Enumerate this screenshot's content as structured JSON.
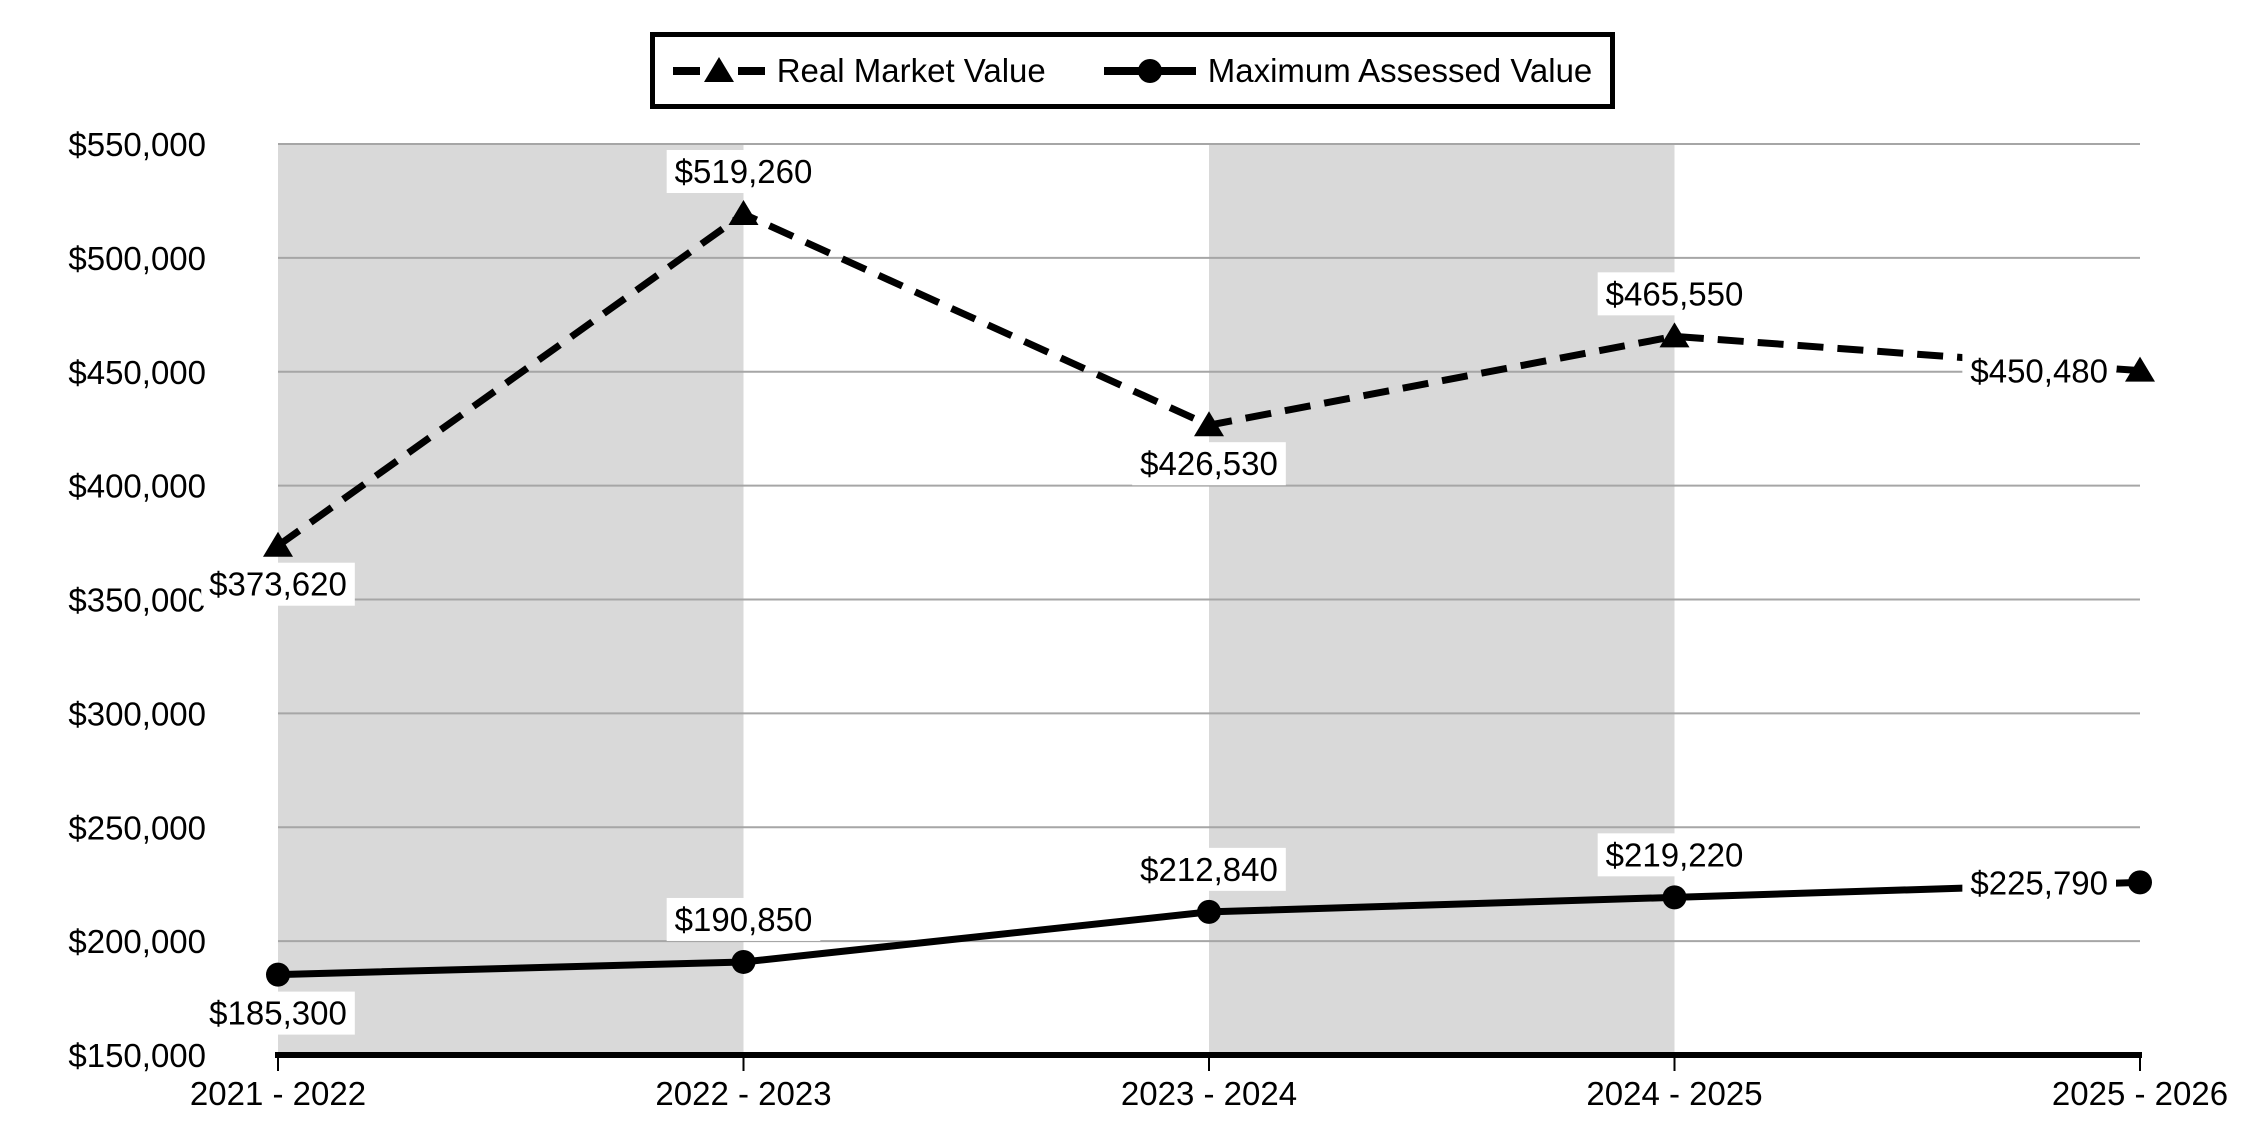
{
  "chart_data": {
    "type": "line",
    "title": "",
    "xlabel": "",
    "ylabel": "",
    "categories": [
      "2021 - 2022",
      "2022 - 2023",
      "2023 - 2024",
      "2024 - 2025",
      "2025 - 2026"
    ],
    "series": [
      {
        "name": "Real Market Value",
        "line_style": "dashed",
        "marker": "triangle",
        "values": [
          373620,
          519260,
          426530,
          465550,
          450480
        ],
        "point_labels": [
          "$373,620",
          "$519,260",
          "$426,530",
          "$465,550",
          "$450,480"
        ],
        "label_positions": [
          "below",
          "above",
          "below",
          "above",
          "left"
        ]
      },
      {
        "name": "Maximum Assessed Value",
        "line_style": "solid",
        "marker": "circle",
        "values": [
          185300,
          190850,
          212840,
          219220,
          225790
        ],
        "point_labels": [
          "$185,300",
          "$190,850",
          "$212,840",
          "$219,220",
          "$225,790"
        ],
        "label_positions": [
          "below",
          "above",
          "above",
          "above",
          "left"
        ]
      }
    ],
    "y_ticks": [
      {
        "value": 550000,
        "label": "$550,000"
      },
      {
        "value": 500000,
        "label": "$500,000"
      },
      {
        "value": 450000,
        "label": "$450,000"
      },
      {
        "value": 400000,
        "label": "$400,000"
      },
      {
        "value": 350000,
        "label": "$350,000"
      },
      {
        "value": 300000,
        "label": "$300,000"
      },
      {
        "value": 250000,
        "label": "$250,000"
      },
      {
        "value": 200000,
        "label": "$200,000"
      },
      {
        "value": 150000,
        "label": "$150,000"
      }
    ],
    "ylim": [
      150000,
      550000
    ],
    "grid": true,
    "legend_position": "top",
    "shaded_category_intervals": [
      0,
      2
    ],
    "colors": {
      "series": "#000000",
      "band": "#d9d9d9",
      "gridline": "#a6a6a6",
      "axis": "#000000",
      "text": "#000000",
      "label_background": "#ffffff",
      "background": "#ffffff"
    }
  }
}
